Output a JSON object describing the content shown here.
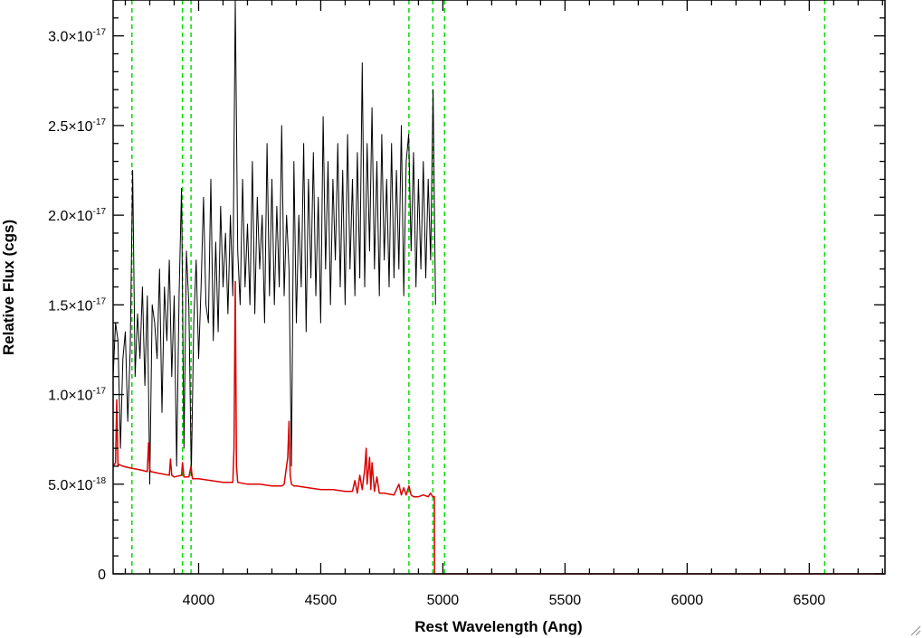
{
  "chart_data": {
    "type": "line",
    "xlabel": "Rest Wavelength (Ang)",
    "ylabel": "Relative Flux (cgs)",
    "xlim": [
      3650,
      6810
    ],
    "ylim": [
      0,
      3.2e-17
    ],
    "x_ticks": [
      4000,
      4500,
      5000,
      5500,
      6000,
      6500
    ],
    "y_ticks": [
      {
        "value": 0,
        "mantissa": "0",
        "exponent": ""
      },
      {
        "value": 5e-18,
        "mantissa": "5.0×10",
        "exponent": "-18"
      },
      {
        "value": 1e-17,
        "mantissa": "1.0×10",
        "exponent": "-17"
      },
      {
        "value": 1.5e-17,
        "mantissa": "1.5×10",
        "exponent": "-17"
      },
      {
        "value": 2e-17,
        "mantissa": "2.0×10",
        "exponent": "-17"
      },
      {
        "value": 2.5e-17,
        "mantissa": "2.5×10",
        "exponent": "-17"
      },
      {
        "value": 3e-17,
        "mantissa": "3.0×10",
        "exponent": "-17"
      }
    ],
    "grid": false,
    "reference_lines": {
      "color": "#00dd00",
      "style": "dashed",
      "x": [
        3727,
        3934,
        3969,
        4861,
        4959,
        5007,
        6563
      ]
    },
    "series": [
      {
        "color": "#000000",
        "x": [
          3650,
          3660,
          3670,
          3680,
          3690,
          3700,
          3710,
          3720,
          3730,
          3740,
          3750,
          3760,
          3770,
          3780,
          3790,
          3800,
          3810,
          3820,
          3830,
          3840,
          3850,
          3860,
          3870,
          3880,
          3890,
          3900,
          3910,
          3920,
          3930,
          3940,
          3950,
          3960,
          3970,
          3980,
          3990,
          4000,
          4010,
          4020,
          4030,
          4040,
          4050,
          4060,
          4070,
          4080,
          4090,
          4100,
          4110,
          4120,
          4130,
          4140,
          4150,
          4160,
          4170,
          4180,
          4190,
          4200,
          4210,
          4220,
          4230,
          4240,
          4250,
          4260,
          4270,
          4280,
          4290,
          4300,
          4310,
          4320,
          4330,
          4340,
          4350,
          4360,
          4370,
          4380,
          4390,
          4400,
          4410,
          4420,
          4430,
          4440,
          4450,
          4460,
          4470,
          4480,
          4490,
          4500,
          4510,
          4520,
          4530,
          4540,
          4550,
          4560,
          4570,
          4580,
          4590,
          4600,
          4610,
          4620,
          4630,
          4640,
          4650,
          4660,
          4670,
          4680,
          4690,
          4700,
          4710,
          4720,
          4730,
          4740,
          4750,
          4760,
          4770,
          4780,
          4790,
          4800,
          4810,
          4820,
          4830,
          4840,
          4850,
          4860,
          4870,
          4880,
          4890,
          4900,
          4910,
          4920,
          4930,
          4940,
          4950,
          4960,
          4970
        ],
        "y": [
          1.1e-17,
          1.4e-17,
          1.3e-17,
          7e-18,
          1.2e-17,
          1.35e-17,
          8.5e-18,
          1.25e-17,
          2.25e-17,
          1.1e-17,
          1.45e-17,
          1.2e-17,
          1.6e-17,
          1.05e-17,
          1.55e-17,
          5e-18,
          1.5e-17,
          1.4e-17,
          1.2e-17,
          1.7e-17,
          9e-18,
          1.6e-17,
          1.3e-17,
          1.75e-17,
          1.1e-17,
          1.55e-17,
          6e-18,
          1.55e-17,
          2.15e-17,
          7e-18,
          1.8e-17,
          1.5e-17,
          5.5e-18,
          1.4e-17,
          1.75e-17,
          1.2e-17,
          1.6e-17,
          2.1e-17,
          1.5e-17,
          1.4e-17,
          2.2e-17,
          1.3e-17,
          1.85e-17,
          1.35e-17,
          2.05e-17,
          1.6e-17,
          1.9e-17,
          1.45e-17,
          2e-17,
          1.55e-17,
          3.2e-17,
          1.8e-17,
          1.5e-17,
          2.2e-17,
          1.6e-17,
          1.95e-17,
          1.5e-17,
          2.3e-17,
          1.45e-17,
          2.1e-17,
          1.7e-17,
          2e-17,
          1.4e-17,
          2.4e-17,
          1.55e-17,
          2.2e-17,
          1.5e-17,
          2.05e-17,
          1.6e-17,
          2.5e-17,
          1.55e-17,
          2e-17,
          1.7e-17,
          6e-18,
          2.3e-17,
          1.4e-17,
          2e-17,
          1.6e-17,
          2.4e-17,
          1.35e-17,
          2.2e-17,
          1.65e-17,
          2.35e-17,
          1.55e-17,
          2.1e-17,
          1.4e-17,
          2.55e-17,
          1.7e-17,
          2.3e-17,
          1.5e-17,
          2.2e-17,
          1.75e-17,
          2.4e-17,
          1.6e-17,
          2.25e-17,
          1.5e-17,
          2.45e-17,
          1.7e-17,
          2.2e-17,
          1.55e-17,
          2.35e-17,
          1.65e-17,
          2.85e-17,
          1.6e-17,
          2.4e-17,
          1.8e-17,
          2.6e-17,
          1.7e-17,
          2.3e-17,
          1.55e-17,
          2.45e-17,
          1.75e-17,
          2.2e-17,
          1.6e-17,
          2.4e-17,
          1.65e-17,
          2.25e-17,
          1.7e-17,
          2.5e-17,
          1.55e-17,
          2.3e-17,
          2.45e-17,
          1.8e-17,
          2.35e-17,
          1.6e-17,
          2.2e-17,
          1.7e-17,
          2.3e-17,
          1.65e-17,
          2.2e-17,
          1.75e-17,
          2.7e-17,
          1.5e-17
        ]
      },
      {
        "color": "#dd0000",
        "x": [
          3650,
          3660,
          3665,
          3670,
          3675,
          3690,
          3720,
          3760,
          3790,
          3795,
          3800,
          3805,
          3840,
          3880,
          3885,
          3890,
          3900,
          3930,
          3934,
          3940,
          3960,
          3969,
          3975,
          4000,
          4050,
          4100,
          4140,
          4145,
          4150,
          4155,
          4160,
          4200,
          4250,
          4300,
          4340,
          4350,
          4365,
          4370,
          4375,
          4380,
          4390,
          4400,
          4450,
          4500,
          4550,
          4600,
          4630,
          4640,
          4650,
          4660,
          4670,
          4680,
          4686,
          4690,
          4700,
          4705,
          4710,
          4720,
          4730,
          4740,
          4760,
          4800,
          4820,
          4830,
          4840,
          4850,
          4861,
          4870,
          4880,
          4900,
          4920,
          4940,
          4950,
          4959,
          4960,
          4965,
          4966,
          5000,
          5500,
          6000,
          6500,
          6810
        ],
        "y": [
          6e-18,
          6.2e-18,
          9.7e-18,
          6e-18,
          6.1e-18,
          6e-18,
          5.9e-18,
          5.8e-18,
          5.7e-18,
          7.3e-18,
          5.8e-18,
          5.7e-18,
          5.6e-18,
          5.5e-18,
          6.4e-18,
          5.5e-18,
          5.4e-18,
          5.5e-18,
          6.2e-18,
          5.4e-18,
          5.4e-18,
          6e-18,
          5.3e-18,
          5.3e-18,
          5.2e-18,
          5.1e-18,
          5.1e-18,
          7e-18,
          1.63e-17,
          6e-18,
          5.1e-18,
          5e-18,
          5e-18,
          4.9e-18,
          4.9e-18,
          5e-18,
          6.5e-18,
          8.5e-18,
          5.5e-18,
          5e-18,
          4.9e-18,
          4.9e-18,
          4.8e-18,
          4.7e-18,
          4.7e-18,
          4.6e-18,
          4.6e-18,
          5.2e-18,
          4.5e-18,
          5.5e-18,
          4.7e-18,
          5.8e-18,
          7e-18,
          5e-18,
          6.5e-18,
          4.7e-18,
          6.2e-18,
          4.6e-18,
          5.4e-18,
          4.5e-18,
          4.5e-18,
          4.4e-18,
          5e-18,
          4.4e-18,
          4.8e-18,
          4.4e-18,
          4.9e-18,
          4.4e-18,
          4.3e-18,
          4.3e-18,
          4.4e-18,
          4.3e-18,
          4.5e-18,
          4.3e-18,
          4.3e-18,
          4.3e-18,
          0.0,
          0.0,
          0.0,
          0.0,
          0.0,
          0.0
        ]
      }
    ]
  }
}
